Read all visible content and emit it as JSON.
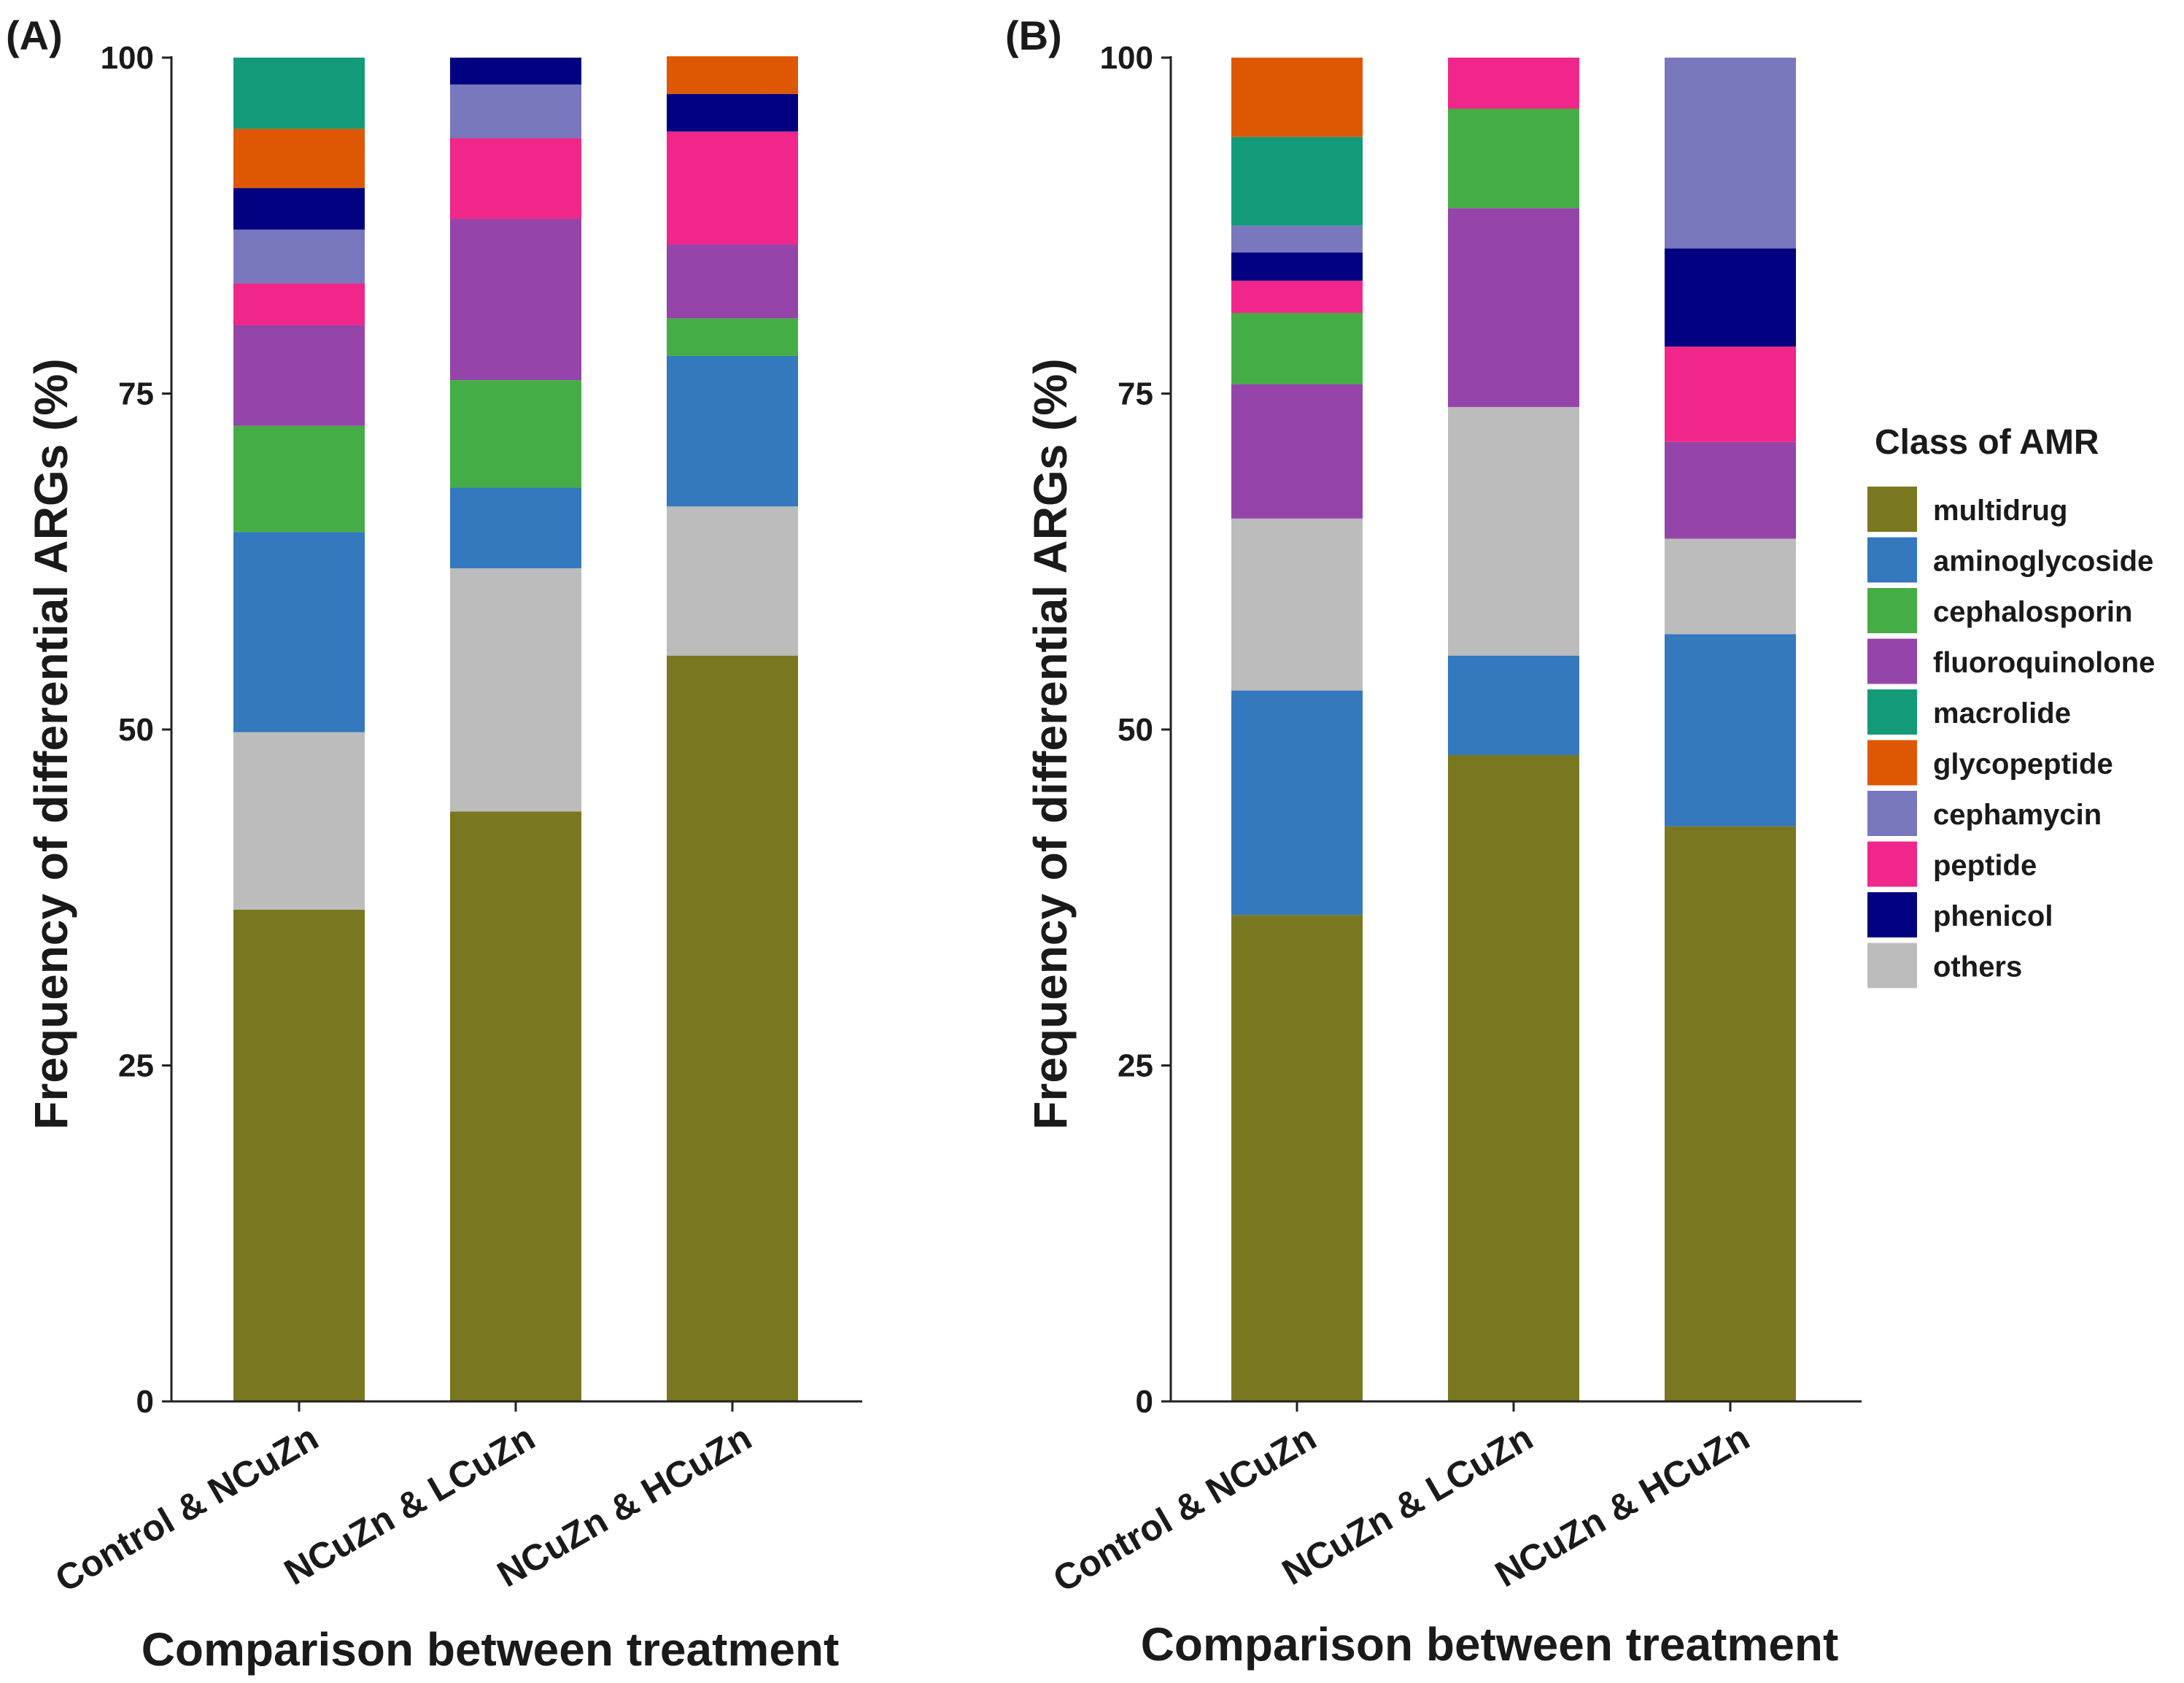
{
  "legend": {
    "title": "Class of AMR",
    "items": [
      {
        "name": "multidrug",
        "color": "#7a7721"
      },
      {
        "name": "aminoglycoside",
        "color": "#3478bd"
      },
      {
        "name": "cephalosporin",
        "color": "#45ad45"
      },
      {
        "name": "fluoroquinolone",
        "color": "#9544aa"
      },
      {
        "name": "macrolide",
        "color": "#139a78"
      },
      {
        "name": "glycopeptide",
        "color": "#de5702"
      },
      {
        "name": "cephamycin",
        "color": "#7977bd"
      },
      {
        "name": "peptide",
        "color": "#f0268a"
      },
      {
        "name": "phenicol",
        "color": "#000080"
      },
      {
        "name": "others",
        "color": "#bcbcbc"
      }
    ]
  },
  "chart_data": [
    {
      "type": "bar",
      "stacked": true,
      "panel_label": "(A)",
      "title": "",
      "xlabel": "Comparison between treatment",
      "ylabel": "Frequency of differential ARGs (%)",
      "ylim": [
        0,
        100
      ],
      "yticks": [
        "0",
        "25",
        "50",
        "75",
        "100"
      ],
      "categories": [
        "Control & NCuZn",
        "NCuZn & LCuZn",
        "NCuZn & HCuZn"
      ],
      "series": [
        {
          "name": "multidrug",
          "values": [
            36.6,
            43.9,
            55.5
          ]
        },
        {
          "name": "others",
          "values": [
            13.2,
            18.1,
            11.1
          ]
        },
        {
          "name": "aminoglycoside",
          "values": [
            14.9,
            6.0,
            11.2
          ]
        },
        {
          "name": "cephalosporin",
          "values": [
            7.9,
            8.0,
            2.8
          ]
        },
        {
          "name": "fluoroquinolone",
          "values": [
            7.5,
            12.0,
            5.5
          ]
        },
        {
          "name": "peptide",
          "values": [
            3.1,
            6.0,
            8.4
          ]
        },
        {
          "name": "cephamycin",
          "values": [
            4.0,
            4.0,
            0.0
          ]
        },
        {
          "name": "phenicol",
          "values": [
            3.1,
            2.0,
            2.8
          ]
        },
        {
          "name": "glycopeptide",
          "values": [
            4.4,
            0.0,
            2.8
          ]
        },
        {
          "name": "macrolide",
          "values": [
            5.3,
            0.0,
            0.0
          ]
        }
      ]
    },
    {
      "type": "bar",
      "stacked": true,
      "panel_label": "(B)",
      "title": "",
      "xlabel": "Comparison between treatment",
      "ylabel": "Frequency of differential ARGs (%)",
      "ylim": [
        0,
        100
      ],
      "yticks": [
        "0",
        "25",
        "50",
        "75",
        "100"
      ],
      "categories": [
        "Control & NCuZn",
        "NCuZn & LCuZn",
        "NCuZn & HCuZn"
      ],
      "series": [
        {
          "name": "multidrug",
          "values": [
            36.2,
            48.1,
            42.8
          ]
        },
        {
          "name": "aminoglycoside",
          "values": [
            16.7,
            7.4,
            14.3
          ]
        },
        {
          "name": "others",
          "values": [
            12.8,
            18.5,
            7.1
          ]
        },
        {
          "name": "fluoroquinolone",
          "values": [
            10.0,
            14.8,
            7.2
          ]
        },
        {
          "name": "cephalosporin",
          "values": [
            5.3,
            7.4,
            0.0
          ]
        },
        {
          "name": "peptide",
          "values": [
            2.4,
            3.8,
            7.1
          ]
        },
        {
          "name": "phenicol",
          "values": [
            2.1,
            0.0,
            7.3
          ]
        },
        {
          "name": "cephamycin",
          "values": [
            2.0,
            0.0,
            14.2
          ]
        },
        {
          "name": "macrolide",
          "values": [
            6.6,
            0.0,
            0.0
          ]
        },
        {
          "name": "glycopeptide",
          "values": [
            5.9,
            0.0,
            0.0
          ]
        }
      ]
    }
  ]
}
